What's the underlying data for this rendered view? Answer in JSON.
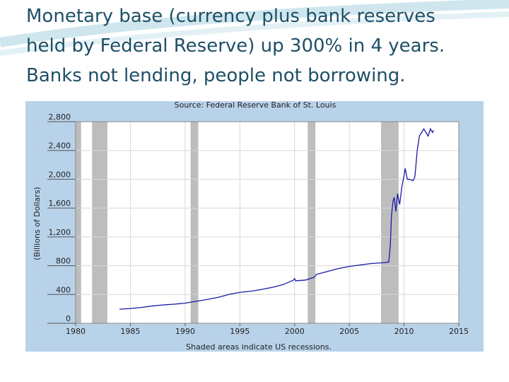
{
  "slide": {
    "title_lines": [
      "Monetary base (currency plus bank reserves",
      "held by Federal Reserve) up 300% in 4 years.",
      "Banks not lending, people not borrowing."
    ]
  },
  "chart_data": {
    "type": "line",
    "title": "Source: Federal Reserve Bank of St. Louis",
    "ylabel": "(Billions of Dollars)",
    "note": "Shaded areas indicate US recessions.",
    "x": [
      1984,
      1985,
      1986,
      1987,
      1988,
      1989,
      1990,
      1991,
      1992,
      1993,
      1994,
      1995,
      1996,
      1997,
      1998,
      1999,
      1999.9,
      2000.0,
      2000.1,
      2001,
      2001.8,
      2002,
      2003,
      2004,
      2005,
      2006,
      2007,
      2008,
      2008.6,
      2008.75,
      2008.85,
      2009.0,
      2009.1,
      2009.25,
      2009.4,
      2009.6,
      2009.8,
      2010.0,
      2010.1,
      2010.3,
      2010.5,
      2010.8,
      2010.9,
      2011.0,
      2011.2,
      2011.4,
      2011.6,
      2011.8,
      2012.0,
      2012.2,
      2012.4,
      2012.6,
      2012.7
    ],
    "values": [
      195,
      205,
      220,
      240,
      255,
      265,
      280,
      305,
      330,
      360,
      400,
      430,
      445,
      470,
      500,
      540,
      600,
      620,
      590,
      600,
      640,
      680,
      720,
      760,
      790,
      810,
      830,
      840,
      850,
      1100,
      1500,
      1700,
      1750,
      1550,
      1800,
      1650,
      1900,
      2050,
      2150,
      2000,
      2000,
      1980,
      2000,
      2050,
      2400,
      2600,
      2650,
      2700,
      2650,
      2600,
      2700,
      2650,
      2680
    ],
    "color": "#1a1aa8",
    "recessions": [
      [
        1980.0,
        1980.5
      ],
      [
        1981.5,
        1982.9
      ],
      [
        1990.5,
        1991.2
      ],
      [
        2001.2,
        2001.9
      ],
      [
        2007.9,
        2009.5
      ]
    ],
    "recession_color": "#bdbdbd",
    "xlim": [
      1980,
      2015
    ],
    "xticks": [
      1980,
      1985,
      1990,
      1995,
      2000,
      2005,
      2010,
      2015
    ],
    "ylim": [
      0,
      2800
    ],
    "yticks": [
      0,
      400,
      800,
      {
        "value": 1200,
        "label": "1,200"
      },
      {
        "value": 1600,
        "label": "1,600"
      },
      {
        "value": 2000,
        "label": "2,000"
      },
      {
        "value": 2400,
        "label": "2,400"
      },
      {
        "value": 2800,
        "label": "2,800"
      }
    ],
    "grid": true
  }
}
